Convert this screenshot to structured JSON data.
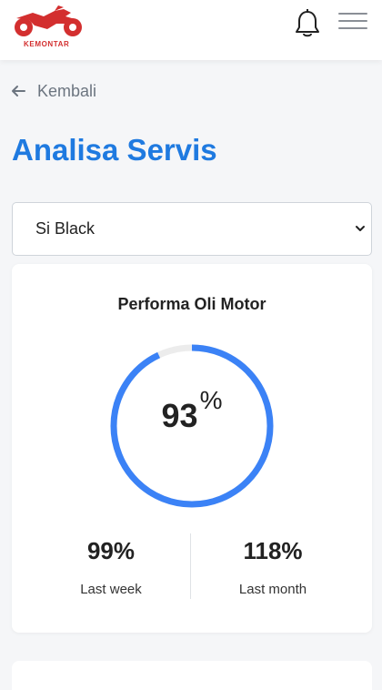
{
  "header": {
    "logo_text": "KEMONTAR",
    "brand_color": "#d32f2f",
    "bell_icon": "bell-icon",
    "menu_icon": "hamburger-menu-icon"
  },
  "nav": {
    "back_label": "Kembali"
  },
  "page": {
    "title": "Analisa Servis",
    "accent_color": "#1f7ae0"
  },
  "vehicle_select": {
    "selected": "Si Black"
  },
  "oil_card": {
    "title": "Performa Oli Motor",
    "gauge_percent": 93,
    "gauge_value": "93",
    "gauge_unit": "%",
    "gauge_color": "#3b82f6",
    "track_color": "#ececec",
    "stats": [
      {
        "value": "99%",
        "label": "Last week"
      },
      {
        "value": "118%",
        "label": "Last month"
      }
    ]
  }
}
